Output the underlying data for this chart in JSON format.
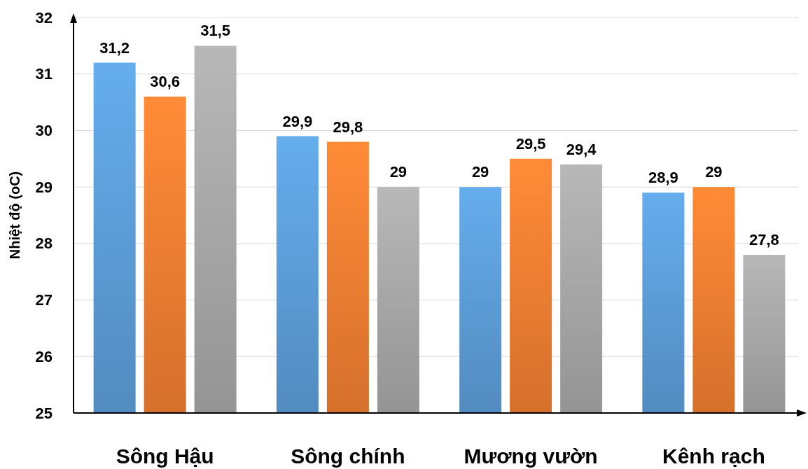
{
  "chart_data": {
    "type": "bar",
    "ylabel": "Nhiệt độ (oC)",
    "categories": [
      "Sông Hậu",
      "Sông chính",
      "Mương vườn",
      "Kênh rạch"
    ],
    "series": [
      {
        "color": "#5b9bd5",
        "values": [
          31.2,
          29.9,
          29,
          28.9
        ],
        "value_labels": [
          "31,2",
          "29,9",
          "29",
          "28,9"
        ]
      },
      {
        "color": "#ed7d31",
        "values": [
          30.6,
          29.8,
          29.5,
          29
        ],
        "value_labels": [
          "30,6",
          "29,8",
          "29,5",
          "29"
        ]
      },
      {
        "color": "#a5a5a5",
        "values": [
          31.5,
          29,
          29.4,
          27.8
        ],
        "value_labels": [
          "31,5",
          "29",
          "29,4",
          "27,8"
        ]
      }
    ],
    "ylim": [
      25,
      32
    ],
    "yticks": [
      25,
      26,
      27,
      28,
      29,
      30,
      31,
      32
    ],
    "grid": "y"
  }
}
